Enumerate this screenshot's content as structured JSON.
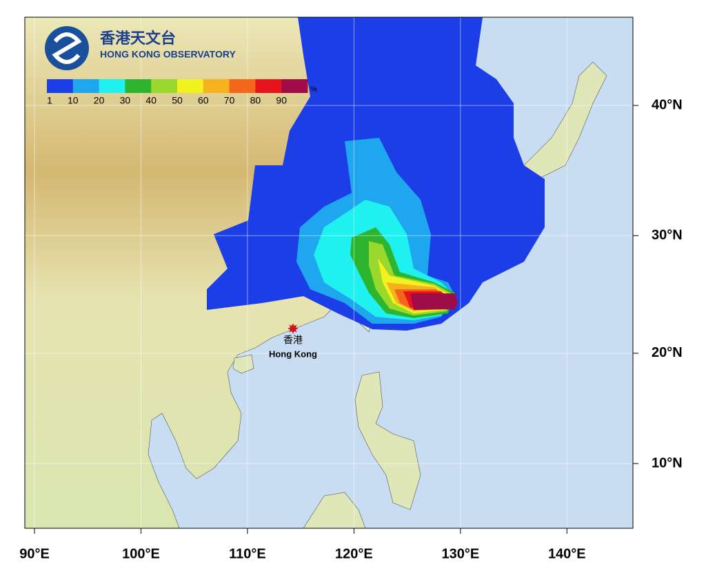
{
  "logo": {
    "name_zh": "香港天文台",
    "name_en": "HONG KONG OBSERVATORY"
  },
  "colorbar": {
    "labels": [
      1,
      10,
      20,
      30,
      40,
      50,
      60,
      70,
      80,
      90
    ],
    "unit": "%",
    "colors": [
      "#1b3ee6",
      "#1ea6ee",
      "#1ff0f0",
      "#2db52f",
      "#9bd82d",
      "#f2f21e",
      "#f5b21c",
      "#f4661c",
      "#e8141c",
      "#a00c48"
    ]
  },
  "longitude_labels": [
    {
      "value": 90,
      "label": "90°E"
    },
    {
      "value": 100,
      "label": "100°E"
    },
    {
      "value": 110,
      "label": "110°E"
    },
    {
      "value": 120,
      "label": "120°E"
    },
    {
      "value": 130,
      "label": "130°E"
    },
    {
      "value": 140,
      "label": "140°E"
    }
  ],
  "latitude_labels": [
    {
      "value": 40,
      "label": "40°N"
    },
    {
      "value": 30,
      "label": "30°N"
    },
    {
      "value": 20,
      "label": "20°N"
    },
    {
      "value": 10,
      "label": "10°N"
    }
  ],
  "station": {
    "name_zh": "香港",
    "name_en": "Hong Kong"
  }
}
